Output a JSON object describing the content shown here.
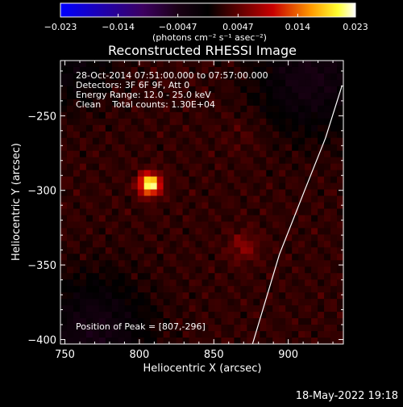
{
  "chart_data": {
    "type": "heatmap",
    "title": "Reconstructed RHESSI Image",
    "xlabel": "Heliocentric X (arcsec)",
    "ylabel": "Heliocentric Y (arcsec)",
    "xlim": [
      747,
      937
    ],
    "ylim": [
      -403,
      -213
    ],
    "x_ticks": [
      750,
      800,
      850,
      900
    ],
    "x_tick_labels": [
      "750",
      "800",
      "850",
      "900"
    ],
    "y_ticks": [
      -250,
      -300,
      -350,
      -400
    ],
    "y_tick_labels": [
      "−250",
      "−300",
      "−350",
      "−400"
    ],
    "colorbar": {
      "min": -0.023,
      "max": 0.023,
      "ticks": [
        -0.023,
        -0.014,
        -0.0047,
        0.0047,
        0.014,
        0.023
      ],
      "tick_labels": [
        "−0.023",
        "−0.014",
        "−0.0047",
        "0.0047",
        "0.014",
        "0.023"
      ],
      "unit_label": "(photons cm⁻² s⁻¹ asec⁻²)",
      "colormap": "RHESSI blue-black-red-yellow-white"
    },
    "annotations": {
      "time_range": "28-Oct-2014 07:51:00.000 to 07:57:00.000",
      "detectors": "Detectors: 3F 6F 9F, Att 0",
      "energy_range": "Energy Range: 12.0 - 25.0 keV",
      "clean": "Clean    Total counts: 1.30E+04",
      "peak_position": "Position of Peak = [807,-296]"
    },
    "peak": {
      "x": 807,
      "y": -296,
      "value": 0.023
    },
    "sources": [
      {
        "x": 807,
        "y": -296,
        "value": 0.023,
        "sigma": 5
      },
      {
        "x": 870,
        "y": -338,
        "value": 0.0065,
        "sigma": 7
      },
      {
        "x": 870,
        "y": -262,
        "value": 0.0035,
        "sigma": 10
      }
    ],
    "limb_curve": [
      {
        "x": 936,
        "y": -230
      },
      {
        "x": 925,
        "y": -265
      },
      {
        "x": 911,
        "y": -300
      },
      {
        "x": 894,
        "y": -343
      },
      {
        "x": 876,
        "y": -403
      }
    ],
    "grid": false
  },
  "footer": {
    "timestamp": "18-May-2022 19:18"
  }
}
